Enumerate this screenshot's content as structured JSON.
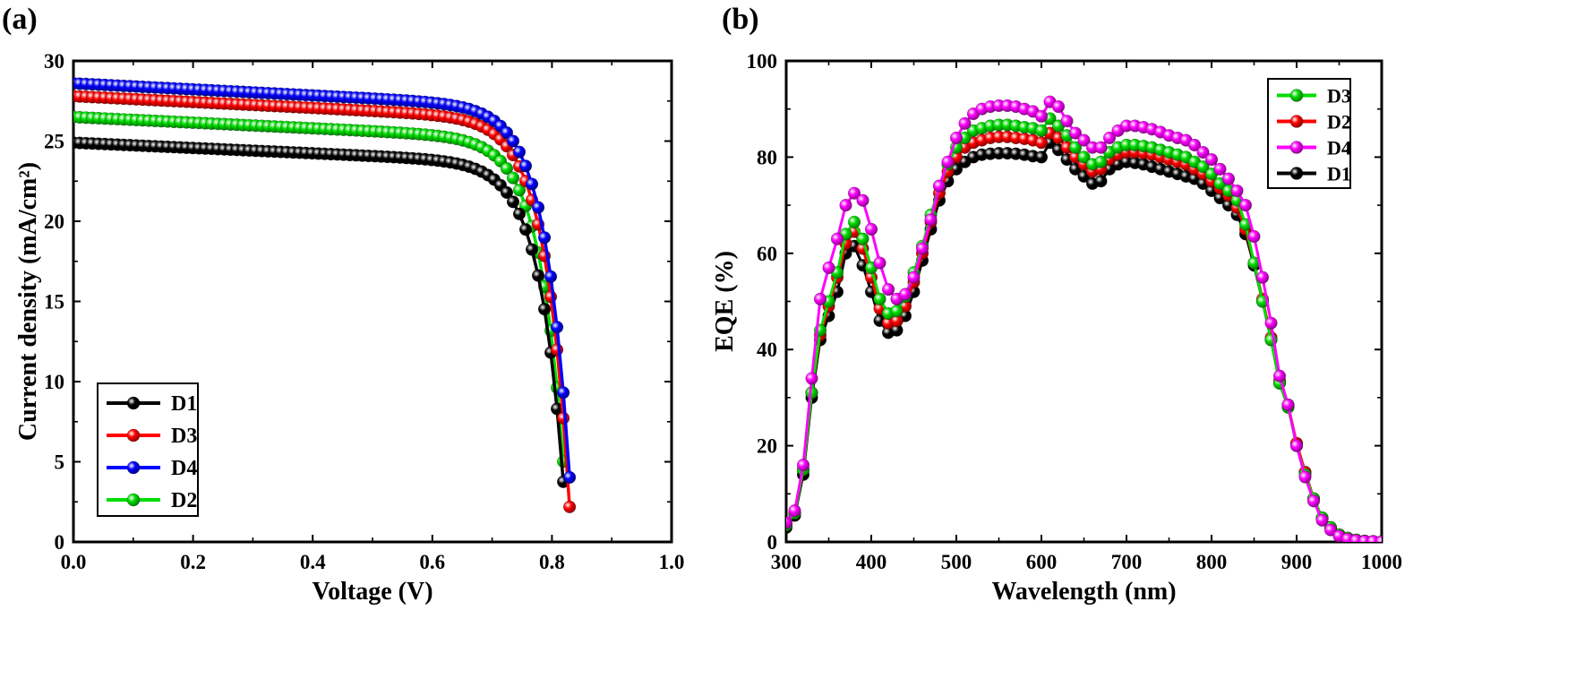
{
  "chart_data": [
    {
      "panel": "(a)",
      "type": "line",
      "xlabel": "Voltage (V)",
      "ylabel": "Current density (mA/cm²)",
      "xlim": [
        0.0,
        1.0
      ],
      "ylim": [
        0,
        30
      ],
      "xticks": [
        "0.0",
        "0.2",
        "0.4",
        "0.6",
        "0.8",
        "1.0"
      ],
      "yticks": [
        "0",
        "5",
        "10",
        "15",
        "20",
        "25",
        "30"
      ],
      "legend_position": "bottom-left",
      "legend": [
        "D1",
        "D3",
        "D4",
        "D2"
      ],
      "series": [
        {
          "name": "D1",
          "color": "#000000",
          "jsc": 24.9,
          "voc": 0.826,
          "knee": 0.7
        },
        {
          "name": "D3",
          "color": "#ff0000",
          "jsc": 27.8,
          "voc": 0.833,
          "knee": 0.73
        },
        {
          "name": "D4",
          "color": "#0000ff",
          "jsc": 28.6,
          "voc": 0.836,
          "knee": 0.74
        },
        {
          "name": "D2",
          "color": "#00dd00",
          "jsc": 26.5,
          "voc": 0.828,
          "knee": 0.705
        }
      ]
    },
    {
      "panel": "(b)",
      "type": "line",
      "xlabel": "Wavelength (nm)",
      "ylabel": "EQE (%)",
      "xlim": [
        300,
        1000
      ],
      "ylim": [
        0,
        100
      ],
      "xticks": [
        "300",
        "400",
        "500",
        "600",
        "700",
        "800",
        "900",
        "1000"
      ],
      "yticks": [
        "0",
        "20",
        "40",
        "60",
        "80",
        "100"
      ],
      "legend_position": "top-right",
      "legend": [
        "D3",
        "D2",
        "D4",
        "D1"
      ],
      "x": [
        300,
        310,
        320,
        330,
        340,
        350,
        360,
        370,
        380,
        390,
        400,
        410,
        420,
        430,
        440,
        450,
        460,
        470,
        480,
        490,
        500,
        510,
        520,
        530,
        540,
        550,
        560,
        570,
        580,
        590,
        600,
        610,
        620,
        630,
        640,
        650,
        660,
        670,
        680,
        690,
        700,
        710,
        720,
        730,
        740,
        750,
        760,
        770,
        780,
        790,
        800,
        810,
        820,
        830,
        840,
        850,
        860,
        870,
        880,
        890,
        900,
        910,
        920,
        930,
        940,
        950,
        960,
        970,
        980,
        990,
        1000
      ],
      "series": [
        {
          "name": "D1",
          "color": "#000000",
          "values": [
            3,
            5.5,
            14,
            30,
            42,
            47,
            52,
            60,
            61.5,
            57.5,
            52,
            46,
            43.5,
            44,
            47,
            52,
            58.5,
            65,
            71,
            75,
            77.5,
            79,
            80,
            80.5,
            80.7,
            80.8,
            80.8,
            80.7,
            80.5,
            80.2,
            80,
            83,
            81.5,
            79.5,
            77.5,
            76,
            74.5,
            75,
            77.5,
            78.5,
            79,
            78.8,
            78.5,
            78,
            77.5,
            77,
            76.5,
            76,
            75.5,
            74.5,
            73,
            71.5,
            70,
            68,
            64,
            57.5,
            50,
            42,
            33,
            28,
            20.5,
            14.5,
            9,
            5,
            3,
            1.5,
            0.8,
            0.4,
            0.2,
            0.1,
            0.05
          ]
        },
        {
          "name": "D2",
          "color": "#ff0000",
          "values": [
            3.5,
            6,
            15,
            31,
            43,
            49,
            55,
            62,
            64.5,
            61,
            55,
            48.5,
            45.5,
            46,
            49,
            54,
            60,
            66.5,
            72.5,
            77,
            80,
            82,
            83,
            83.5,
            84,
            84.2,
            84.2,
            84,
            83.8,
            83.5,
            83,
            85,
            84,
            82,
            80,
            78.5,
            77,
            77.5,
            79.5,
            80.5,
            81,
            81,
            80.8,
            80.5,
            80,
            79.5,
            79,
            78.5,
            77.5,
            76.5,
            75,
            73.5,
            72,
            69.5,
            65,
            58,
            50.5,
            42.5,
            33.5,
            28.5,
            20.5,
            14.5,
            9,
            5,
            3,
            1.5,
            0.8,
            0.4,
            0.2,
            0.1,
            0.05
          ]
        },
        {
          "name": "D3",
          "color": "#00dd00",
          "values": [
            3.5,
            6,
            15,
            31,
            44,
            50,
            56,
            64,
            66.5,
            63,
            57,
            50.5,
            47.5,
            48,
            51,
            56,
            61.5,
            68,
            74,
            78.5,
            82,
            84,
            85.5,
            86,
            86.5,
            86.7,
            86.7,
            86.5,
            86.2,
            86,
            85.5,
            88,
            86.5,
            84.5,
            82,
            80,
            78.5,
            79,
            81,
            82,
            82.5,
            82.5,
            82.3,
            82,
            81.5,
            81,
            80.5,
            80,
            79,
            78,
            76.5,
            74.5,
            73,
            71,
            66,
            58,
            50,
            42,
            33,
            28,
            20,
            14,
            9,
            5,
            3,
            1.5,
            0.8,
            0.4,
            0.2,
            0.1,
            0.05
          ]
        },
        {
          "name": "D4",
          "color": "#ff00ff",
          "values": [
            4,
            6.5,
            16,
            34,
            50.5,
            57,
            63,
            70,
            72.5,
            71,
            65,
            58,
            52.5,
            50.5,
            51.5,
            55,
            61,
            67,
            74,
            79,
            84,
            87,
            89,
            90,
            90.5,
            90.7,
            90.7,
            90.5,
            90,
            89.5,
            88.5,
            91.5,
            90.5,
            87.5,
            85,
            83.5,
            82,
            82,
            84,
            85.5,
            86.5,
            86.5,
            86.2,
            85.8,
            85.2,
            84.5,
            84,
            83.5,
            82.5,
            81,
            79.5,
            77.5,
            75.5,
            73,
            70,
            63.5,
            55,
            45.5,
            34.5,
            28.5,
            20,
            13.5,
            8.5,
            4.5,
            2.5,
            1.2,
            0.6,
            0.3,
            0.15,
            0.1,
            0.05
          ]
        }
      ]
    }
  ]
}
